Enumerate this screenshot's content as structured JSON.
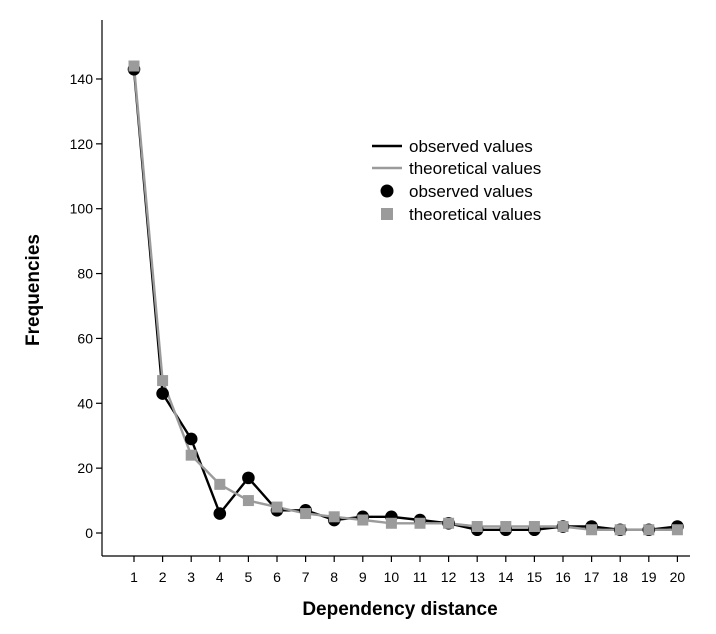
{
  "chart_data": {
    "type": "line",
    "title": "",
    "xlabel": "Dependency distance",
    "ylabel": "Frequencies",
    "x": [
      1,
      2,
      3,
      4,
      5,
      6,
      7,
      8,
      9,
      10,
      11,
      12,
      13,
      14,
      15,
      16,
      17,
      18,
      19,
      20
    ],
    "x_tick_labels": [
      "1",
      "2",
      "3",
      "4",
      "5",
      "6",
      "7",
      "8",
      "9",
      "10",
      "11",
      "12",
      "13",
      "14",
      "15",
      "16",
      "17",
      "18",
      "19",
      "20"
    ],
    "y_ticks": [
      0,
      20,
      40,
      60,
      80,
      100,
      120,
      140
    ],
    "y_tick_labels": [
      "0",
      "20",
      "40",
      "60",
      "80",
      "100",
      "120",
      "140"
    ],
    "ylim": [
      -8,
      158
    ],
    "grid": false,
    "legend_position": "top-right",
    "legend_entries": [
      "observed values",
      "theoretical values",
      "observed values",
      "theoretical values"
    ],
    "series": [
      {
        "name": "observed values",
        "color": "#000000",
        "marker": "circle",
        "values": [
          143,
          43,
          29,
          6,
          17,
          7,
          7,
          4,
          5,
          5,
          4,
          3,
          1,
          1,
          1,
          2,
          2,
          1,
          1,
          2
        ]
      },
      {
        "name": "theoretical values",
        "color": "#9b9b9b",
        "marker": "square",
        "values": [
          144,
          47,
          24,
          15,
          10,
          8,
          6,
          5,
          4,
          3,
          3,
          3,
          2,
          2,
          2,
          2,
          1,
          1,
          1,
          1
        ]
      }
    ]
  }
}
